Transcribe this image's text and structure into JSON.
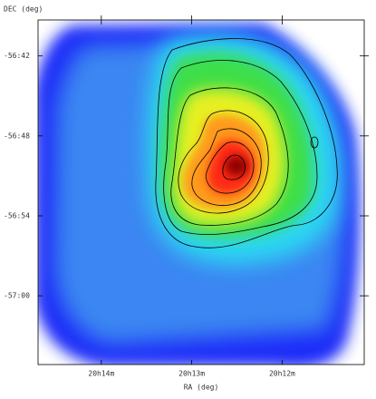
{
  "chart_data": {
    "type": "image",
    "xlabel": "RA (deg)",
    "ylabel": "DEC (deg)",
    "xlim": [
      303.675,
      302.773
    ],
    "ylim": [
      -57.086,
      -56.655
    ],
    "xticks": [
      {
        "value": 303.5,
        "label": "20h14m"
      },
      {
        "value": 303.25,
        "label": "20h13m"
      },
      {
        "value": 303.0,
        "label": "20h12m"
      }
    ],
    "yticks": [
      {
        "value": -56.7,
        "label": "-56:42"
      },
      {
        "value": -56.8,
        "label": "-56:48"
      },
      {
        "value": -56.9,
        "label": "-56:54"
      },
      {
        "value": -57.0,
        "label": "-57:00"
      }
    ]
  }
}
